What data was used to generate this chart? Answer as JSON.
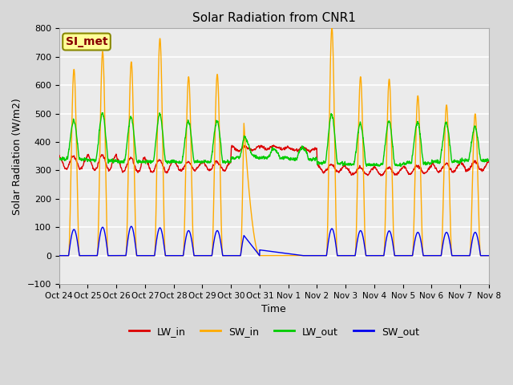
{
  "title": "Solar Radiation from CNR1",
  "xlabel": "Time",
  "ylabel": "Solar Radiation (W/m2)",
  "ylim": [
    -100,
    800
  ],
  "yticks": [
    -100,
    0,
    100,
    200,
    300,
    400,
    500,
    600,
    700,
    800
  ],
  "xtick_labels": [
    "Oct 24",
    "Oct 25",
    "Oct 26",
    "Oct 27",
    "Oct 28",
    "Oct 29",
    "Oct 30",
    "Oct 31",
    "Nov 1",
    "Nov 2",
    "Nov 3",
    "Nov 4",
    "Nov 5",
    "Nov 6",
    "Nov 7",
    "Nov 8"
  ],
  "series_colors": {
    "LW_in": "#dd0000",
    "SW_in": "#ffaa00",
    "LW_out": "#00cc00",
    "SW_out": "#0000ee"
  },
  "line_width": 1.0,
  "figsize": [
    6.4,
    4.8
  ],
  "dpi": 100,
  "bg_color": "#d8d8d8",
  "plot_bg_color": "#ebebeb",
  "grid_color": "#ffffff",
  "annotation_text": "SI_met",
  "annotation_bg": "#ffff99",
  "annotation_border": "#888800",
  "annotation_text_color": "#880000",
  "legend_labels": [
    "LW_in",
    "SW_in",
    "LW_out",
    "SW_out"
  ]
}
